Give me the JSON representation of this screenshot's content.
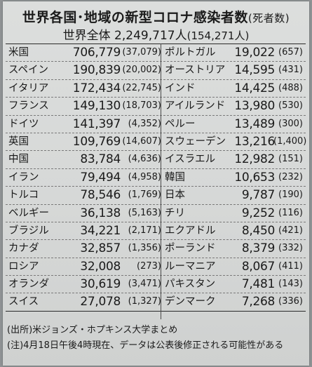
{
  "title": {
    "main": "世界各国･地域の新型コロナ感染者数",
    "paren": "(死者数)"
  },
  "subtitle": {
    "main": "世界全体 2,249,717人",
    "paren": "(154,271人)"
  },
  "rows": [
    {
      "left": {
        "name": "米国",
        "cases": "706,779",
        "deaths": "(37,079)"
      },
      "right": {
        "name": "ポルトガル",
        "cases": "19,022",
        "deaths": "(657)"
      }
    },
    {
      "left": {
        "name": "スペイン",
        "cases": "190,839",
        "deaths": "(20,002)"
      },
      "right": {
        "name": "オーストリア",
        "cases": "14,595",
        "deaths": "(431)"
      }
    },
    {
      "left": {
        "name": "イタリア",
        "cases": "172,434",
        "deaths": "(22,745)"
      },
      "right": {
        "name": "インド",
        "cases": "14,425",
        "deaths": "(488)"
      }
    },
    {
      "left": {
        "name": "フランス",
        "cases": "149,130",
        "deaths": "(18,703)"
      },
      "right": {
        "name": "アイルランド",
        "cases": "13,980",
        "deaths": "(530)"
      }
    },
    {
      "left": {
        "name": "ドイツ",
        "cases": "141,397",
        "deaths": "(4,352)"
      },
      "right": {
        "name": "ペルー",
        "cases": "13,489",
        "deaths": "(300)"
      }
    },
    {
      "left": {
        "name": "英国",
        "cases": "109,769",
        "deaths": "(14,607)"
      },
      "right": {
        "name": "スウェーデン",
        "cases": "13,216",
        "deaths": "(1,400)"
      }
    },
    {
      "left": {
        "name": "中国",
        "cases": "83,784",
        "deaths": "(4,636)"
      },
      "right": {
        "name": "イスラエル",
        "cases": "12,982",
        "deaths": "(151)"
      }
    },
    {
      "left": {
        "name": "イラン",
        "cases": "79,494",
        "deaths": "(4,958)"
      },
      "right": {
        "name": "韓国",
        "cases": "10,653",
        "deaths": "(232)"
      }
    },
    {
      "left": {
        "name": "トルコ",
        "cases": "78,546",
        "deaths": "(1,769)"
      },
      "right": {
        "name": "日本",
        "cases": "9,787",
        "deaths": "(190)"
      }
    },
    {
      "left": {
        "name": "ベルギー",
        "cases": "36,138",
        "deaths": "(5,163)"
      },
      "right": {
        "name": "チリ",
        "cases": "9,252",
        "deaths": "(116)"
      }
    },
    {
      "left": {
        "name": "ブラジル",
        "cases": "34,221",
        "deaths": "(2,171)"
      },
      "right": {
        "name": "エクアドル",
        "cases": "8,450",
        "deaths": "(421)"
      }
    },
    {
      "left": {
        "name": "カナダ",
        "cases": "32,857",
        "deaths": "(1,356)"
      },
      "right": {
        "name": "ポーランド",
        "cases": "8,379",
        "deaths": "(332)"
      }
    },
    {
      "left": {
        "name": "ロシア",
        "cases": "32,008",
        "deaths": "(273)"
      },
      "right": {
        "name": "ルーマニア",
        "cases": "8,067",
        "deaths": "(411)"
      }
    },
    {
      "left": {
        "name": "オランダ",
        "cases": "30,619",
        "deaths": "(3,471)"
      },
      "right": {
        "name": "パキスタン",
        "cases": "7,481",
        "deaths": "(143)"
      }
    },
    {
      "left": {
        "name": "スイス",
        "cases": "27,078",
        "deaths": "(1,327)"
      },
      "right": {
        "name": "デンマーク",
        "cases": "7,268",
        "deaths": "(336)"
      }
    }
  ],
  "notes": {
    "source": "(出所)米ジョンズ・ホプキンス大学まとめ",
    "caveat": "(注)4月18日午後4時現在、データは公表後修正される可能性がある"
  }
}
